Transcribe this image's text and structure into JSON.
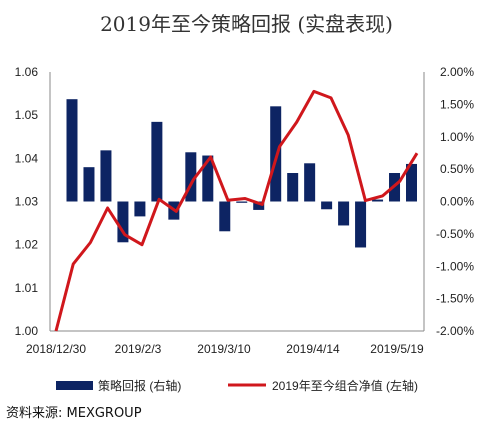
{
  "chart_data": {
    "type": "bar+line",
    "title": "2019年至今策略回报 (实盘表现)",
    "source": "资料来源: MEXGROUP",
    "x_tick_labels": [
      "2018/12/30",
      "2019/2/3",
      "2019/3/10",
      "2019/4/14",
      "2019/5/19"
    ],
    "left_axis": {
      "ylim": [
        1.0,
        1.06
      ],
      "ticks": [
        "1.00",
        "1.01",
        "1.02",
        "1.03",
        "1.04",
        "1.05",
        "1.06"
      ]
    },
    "right_axis": {
      "ylim": [
        -0.02,
        0.02
      ],
      "ticks": [
        "-2.00%",
        "-1.50%",
        "-1.00%",
        "-0.50%",
        "0.00%",
        "0.50%",
        "1.00%",
        "1.50%",
        "2.00%"
      ]
    },
    "series": [
      {
        "name": "策略回报 (右轴)",
        "type": "bar",
        "axis": "right",
        "color": "#0d2463",
        "values": [
          0.0158,
          0.0053,
          0.0079,
          -0.0063,
          -0.0023,
          0.0123,
          -0.0028,
          0.0076,
          0.0071,
          -0.0046,
          -0.0002,
          -0.0013,
          0.0147,
          0.0044,
          0.0059,
          -0.0012,
          -0.0037,
          -0.0071,
          0.0003,
          0.0044,
          0.0058
        ]
      },
      {
        "name": "2019年至今组合净值 (左轴)",
        "type": "line",
        "axis": "left",
        "color": "#d0171c",
        "values": [
          1.0,
          1.0155,
          1.0205,
          1.0285,
          1.0223,
          1.02,
          1.0305,
          1.0277,
          1.0351,
          1.0403,
          1.0303,
          1.0307,
          1.0293,
          1.0427,
          1.0484,
          1.0555,
          1.054,
          1.0454,
          1.0302,
          1.0313,
          1.0347,
          1.0412
        ]
      }
    ]
  }
}
